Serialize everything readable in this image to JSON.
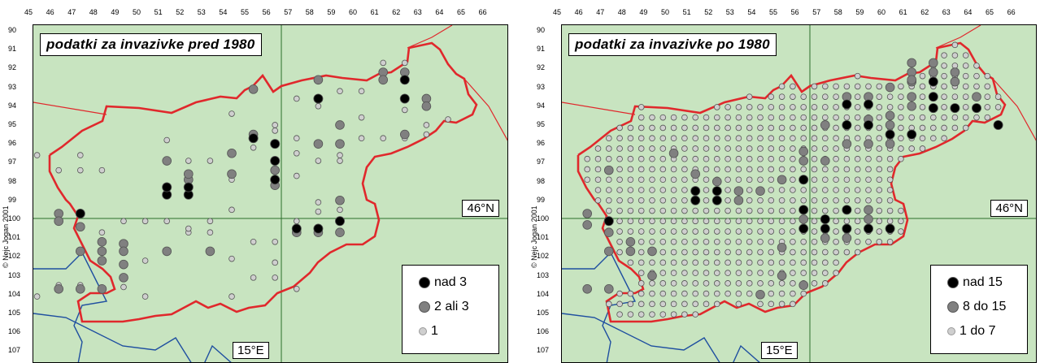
{
  "x_ticks": [
    "45",
    "46",
    "47",
    "48",
    "49",
    "50",
    "51",
    "52",
    "53",
    "54",
    "55",
    "56",
    "57",
    "58",
    "59",
    "60",
    "61",
    "62",
    "63",
    "64",
    "65",
    "66"
  ],
  "y_ticks": [
    "90",
    "91",
    "92",
    "93",
    "94",
    "95",
    "96",
    "97",
    "98",
    "99",
    "100",
    "101",
    "102",
    "103",
    "104",
    "105",
    "106",
    "107"
  ],
  "colors": {
    "background": "#c8e4c0",
    "border": "#e0282c",
    "river": "#1f4fa0",
    "high": "#000000",
    "mid": "#808080",
    "low": "#cfcfcf"
  },
  "copyright": "© Nejc Jogan 2001",
  "lat_label": "46°N",
  "lon_label": "15°E",
  "panels": [
    {
      "title": "podatki za invazivke pred 1980",
      "legend": [
        {
          "label": "nad 3",
          "color": "#000000"
        },
        {
          "label": "2 ali 3",
          "color": "#808080"
        },
        {
          "label": "1",
          "color": "#cfcfcf"
        }
      ]
    },
    {
      "title": "podatki za invazivke po 1980",
      "legend": [
        {
          "label": "nad 15",
          "color": "#000000"
        },
        {
          "label": "8 do 15",
          "color": "#808080"
        },
        {
          "label": "1 do 7",
          "color": "#cfcfcf"
        }
      ]
    }
  ],
  "map_data": [
    {
      "high": [
        [
          48,
          100
        ],
        [
          52,
          99
        ],
        [
          53,
          99
        ],
        [
          52,
          98.6
        ],
        [
          53,
          98.6
        ],
        [
          56,
          96
        ],
        [
          57,
          96.3
        ],
        [
          57,
          98.2
        ],
        [
          57,
          97.2
        ],
        [
          58,
          100.8
        ],
        [
          59,
          100.8
        ],
        [
          60,
          100.4
        ],
        [
          59,
          93.9
        ],
        [
          63,
          92.9
        ],
        [
          63,
          93.9
        ]
      ],
      "mid": [
        [
          47,
          100
        ],
        [
          48,
          100.7
        ],
        [
          47,
          100.4
        ],
        [
          48,
          102
        ],
        [
          49,
          102
        ],
        [
          49,
          101.5
        ],
        [
          50,
          101.6
        ],
        [
          50,
          102
        ],
        [
          49,
          102.5
        ],
        [
          50,
          102.7
        ],
        [
          50,
          103.4
        ],
        [
          49,
          104
        ],
        [
          48,
          104
        ],
        [
          47,
          104
        ],
        [
          52,
          97.2
        ],
        [
          53,
          98.2
        ],
        [
          53,
          97.9
        ],
        [
          55,
          97.9
        ],
        [
          52,
          102
        ],
        [
          54,
          102
        ],
        [
          55,
          96.8
        ],
        [
          56,
          95.8
        ],
        [
          57,
          96.3
        ],
        [
          57,
          97.7
        ],
        [
          57,
          98.5
        ],
        [
          59,
          96.3
        ],
        [
          60,
          96.3
        ],
        [
          60,
          99.3
        ],
        [
          60,
          101
        ],
        [
          59,
          101
        ],
        [
          58,
          101
        ],
        [
          56,
          93.4
        ],
        [
          59,
          92.9
        ],
        [
          60,
          95.3
        ],
        [
          62,
          92.5
        ],
        [
          62,
          92.9
        ],
        [
          63,
          92.5
        ],
        [
          63,
          95.8
        ],
        [
          64,
          93.9
        ],
        [
          64,
          94.3
        ]
      ],
      "low": [
        [
          46,
          96.9
        ],
        [
          48,
          96.9
        ],
        [
          48,
          97.7
        ],
        [
          47,
          97.7
        ],
        [
          49,
          97.7
        ],
        [
          51,
          100.4
        ],
        [
          52,
          96.1
        ],
        [
          53,
          97.2
        ],
        [
          54,
          97.2
        ],
        [
          55,
          94.7
        ],
        [
          55,
          98.2
        ],
        [
          55,
          99.8
        ],
        [
          56,
          93.4
        ],
        [
          56,
          96.5
        ],
        [
          57,
          95.3
        ],
        [
          57,
          95.6
        ],
        [
          58,
          96
        ],
        [
          58,
          96.8
        ],
        [
          58,
          98
        ],
        [
          58,
          100.8
        ],
        [
          58,
          100.4
        ],
        [
          59,
          97.2
        ],
        [
          59,
          99.4
        ],
        [
          59,
          99.9
        ],
        [
          60,
          93.5
        ],
        [
          60,
          96.9
        ],
        [
          60,
          97.2
        ],
        [
          60,
          99.8
        ],
        [
          61,
          93.5
        ],
        [
          61,
          94.9
        ],
        [
          62,
          92
        ],
        [
          62,
          92.9
        ],
        [
          63,
          92
        ],
        [
          63,
          94.5
        ],
        [
          64,
          95.3
        ],
        [
          64,
          95.8
        ],
        [
          65,
          95
        ],
        [
          59,
          94.3
        ],
        [
          58,
          93.9
        ],
        [
          61,
          96
        ],
        [
          62,
          96
        ],
        [
          63,
          96
        ],
        [
          50,
          103.9
        ],
        [
          51,
          104.4
        ],
        [
          52,
          100.4
        ],
        [
          53,
          101
        ],
        [
          54,
          101
        ],
        [
          55,
          102.4
        ],
        [
          55,
          104.4
        ],
        [
          56,
          103.4
        ],
        [
          56,
          101.5
        ],
        [
          57,
          101.5
        ],
        [
          57,
          102.6
        ],
        [
          57,
          103.4
        ],
        [
          58,
          104
        ],
        [
          48,
          103.8
        ],
        [
          47,
          103.8
        ],
        [
          46,
          104.4
        ],
        [
          53,
          100.8
        ],
        [
          54,
          100.4
        ],
        [
          50,
          100.4
        ],
        [
          49,
          101
        ],
        [
          51,
          102.5
        ]
      ]
    },
    {
      "high": [
        [
          48,
          100.4
        ],
        [
          52,
          98.8
        ],
        [
          52,
          99.3
        ],
        [
          53,
          98.8
        ],
        [
          53,
          99.3
        ],
        [
          57,
          98.2
        ],
        [
          57,
          99.8
        ],
        [
          58,
          100.8
        ],
        [
          59,
          100.8
        ],
        [
          60,
          100.8
        ],
        [
          61,
          100.8
        ],
        [
          57,
          100.8
        ],
        [
          58,
          100.3
        ],
        [
          59,
          99.8
        ],
        [
          59,
          94.2
        ],
        [
          60,
          94.2
        ],
        [
          59,
          95.3
        ],
        [
          60,
          95.3
        ],
        [
          61,
          95.8
        ],
        [
          62,
          95.8
        ],
        [
          63,
          93.8
        ],
        [
          63,
          94.4
        ],
        [
          64,
          94.4
        ],
        [
          65,
          94.4
        ],
        [
          66,
          95.3
        ],
        [
          63,
          93
        ]
      ],
      "mid": [
        [
          47,
          100
        ],
        [
          47,
          100.6
        ],
        [
          48,
          101
        ],
        [
          48,
          102
        ],
        [
          49,
          102
        ],
        [
          48,
          104
        ],
        [
          47,
          104
        ],
        [
          51,
          96.8
        ],
        [
          52,
          97.9
        ],
        [
          53,
          98.3
        ],
        [
          54,
          98.8
        ],
        [
          54,
          99.3
        ],
        [
          55,
          98.8
        ],
        [
          56,
          98.2
        ],
        [
          57,
          97.2
        ],
        [
          57,
          96.7
        ],
        [
          58,
          97.2
        ],
        [
          59,
          96.3
        ],
        [
          60,
          96.3
        ],
        [
          58,
          95.3
        ],
        [
          59,
          93.8
        ],
        [
          60,
          93.8
        ],
        [
          61,
          94.8
        ],
        [
          61,
          96.3
        ],
        [
          62,
          93
        ],
        [
          62,
          92.5
        ],
        [
          62,
          92
        ],
        [
          63,
          92
        ],
        [
          63,
          92.5
        ],
        [
          64,
          93
        ],
        [
          65,
          93.8
        ],
        [
          62,
          94.3
        ],
        [
          61,
          93.3
        ],
        [
          57,
          100.3
        ],
        [
          58,
          101.3
        ],
        [
          59,
          101.3
        ],
        [
          56,
          101.8
        ],
        [
          56,
          103.3
        ],
        [
          55,
          104.3
        ],
        [
          57,
          103.8
        ],
        [
          60,
          100.3
        ],
        [
          60,
          99.8
        ],
        [
          49,
          101.5
        ],
        [
          50,
          102
        ],
        [
          50,
          103.3
        ],
        [
          48,
          97.7
        ],
        [
          60,
          95
        ],
        [
          61,
          95.3
        ],
        [
          62,
          93.8
        ],
        [
          62,
          92.9
        ],
        [
          64,
          92.5
        ]
      ],
      "low_region": true
    }
  ]
}
